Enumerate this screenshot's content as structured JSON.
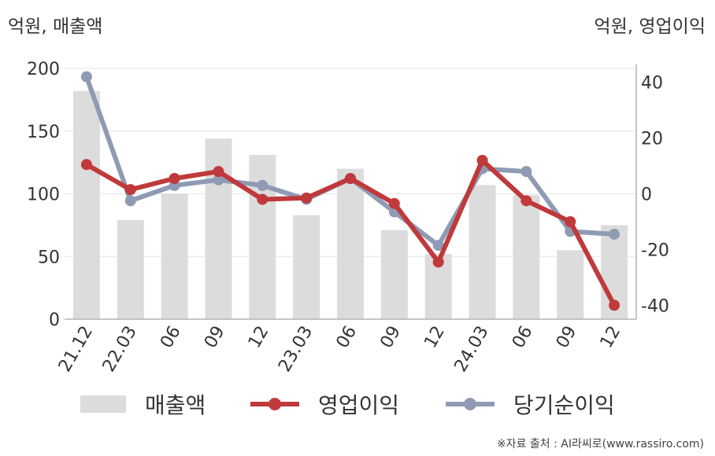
{
  "unit_left": "억원, 매출액",
  "unit_right": "억원, 영업이익",
  "source": "※자료 출처 : AI라씨로(www.rassiro.com)",
  "colors": {
    "bar": "#dcdcdc",
    "operating_profit": "#c0393b",
    "net_income": "#8f9bb4",
    "gridline": "#e6e6e6",
    "axis": "#b4b4b4"
  },
  "legend": {
    "revenue": "매출액",
    "operating_profit": "영업이익",
    "net_income": "당기순이익"
  },
  "chart_data": {
    "type": "bar+line",
    "categories": [
      "21.12",
      "22.03",
      "06",
      "09",
      "12",
      "23.03",
      "06",
      "09",
      "12",
      "24.03",
      "06",
      "09",
      "12"
    ],
    "left_axis": {
      "label": "억원, 매출액",
      "ylim": [
        0,
        200
      ],
      "ticks": [
        0,
        50,
        100,
        150,
        200
      ]
    },
    "right_axis": {
      "label": "억원, 영업이익",
      "ylim": [
        -45,
        45
      ],
      "ticks": [
        -40,
        -20,
        0,
        20,
        40
      ]
    },
    "grid": true,
    "legend_position": "bottom",
    "series": [
      {
        "name": "매출액",
        "type": "bar",
        "axis": "left",
        "values": [
          182,
          79,
          100,
          144,
          131,
          83,
          120,
          71,
          52,
          107,
          99,
          55,
          75
        ]
      },
      {
        "name": "영업이익",
        "type": "line",
        "axis": "right",
        "values": [
          10.5,
          1.5,
          5.5,
          8,
          -2,
          -1.5,
          5.5,
          -3.5,
          -24.5,
          12,
          -2.5,
          -10,
          -40
        ]
      },
      {
        "name": "당기순이익",
        "type": "line",
        "axis": "right",
        "values": [
          42,
          -2.5,
          3,
          5,
          3,
          -2,
          5.5,
          -6.5,
          -18.5,
          9,
          8,
          -13.5,
          -14.5
        ]
      }
    ]
  }
}
